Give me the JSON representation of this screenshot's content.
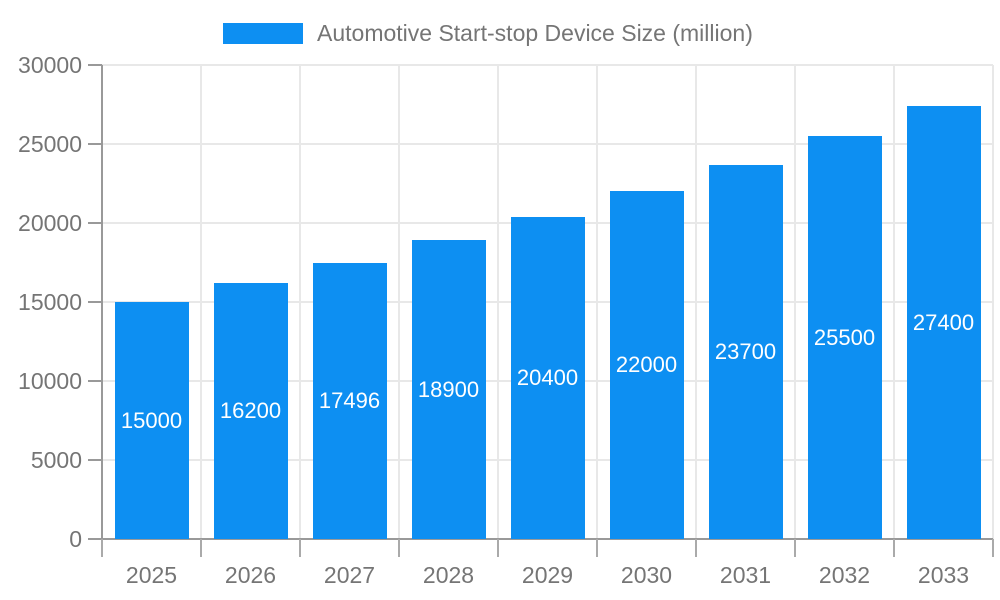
{
  "chart_data": {
    "type": "bar",
    "title": "Automotive Start-stop Device Size (million)",
    "legend": [
      "Automotive Start-stop Device Size (million)"
    ],
    "legend_position": "top",
    "categories": [
      "2025",
      "2026",
      "2027",
      "2028",
      "2029",
      "2030",
      "2031",
      "2032",
      "2033"
    ],
    "values": [
      15000,
      16200,
      17496,
      18900,
      20400,
      22000,
      23700,
      25500,
      27400
    ],
    "bar_labels": [
      "15000",
      "16200",
      "17496",
      "18900",
      "20400",
      "22000",
      "23700",
      "25500",
      "27400"
    ],
    "bar_label_position": "center-inside",
    "xlabel": "",
    "ylabel": "",
    "ylim": [
      0,
      30000
    ],
    "yticks": [
      0,
      5000,
      10000,
      15000,
      20000,
      25000,
      30000
    ],
    "ytick_labels": [
      "0",
      "5000",
      "10000",
      "15000",
      "20000",
      "25000",
      "30000"
    ],
    "grid": true,
    "colors": {
      "bar": "#0d8ff2",
      "bar_label": "#ffffff",
      "axis": "#999999",
      "tick": "#aaaaaa",
      "grid": "#e8e8e8",
      "text": "#757575",
      "background": "#ffffff"
    }
  }
}
